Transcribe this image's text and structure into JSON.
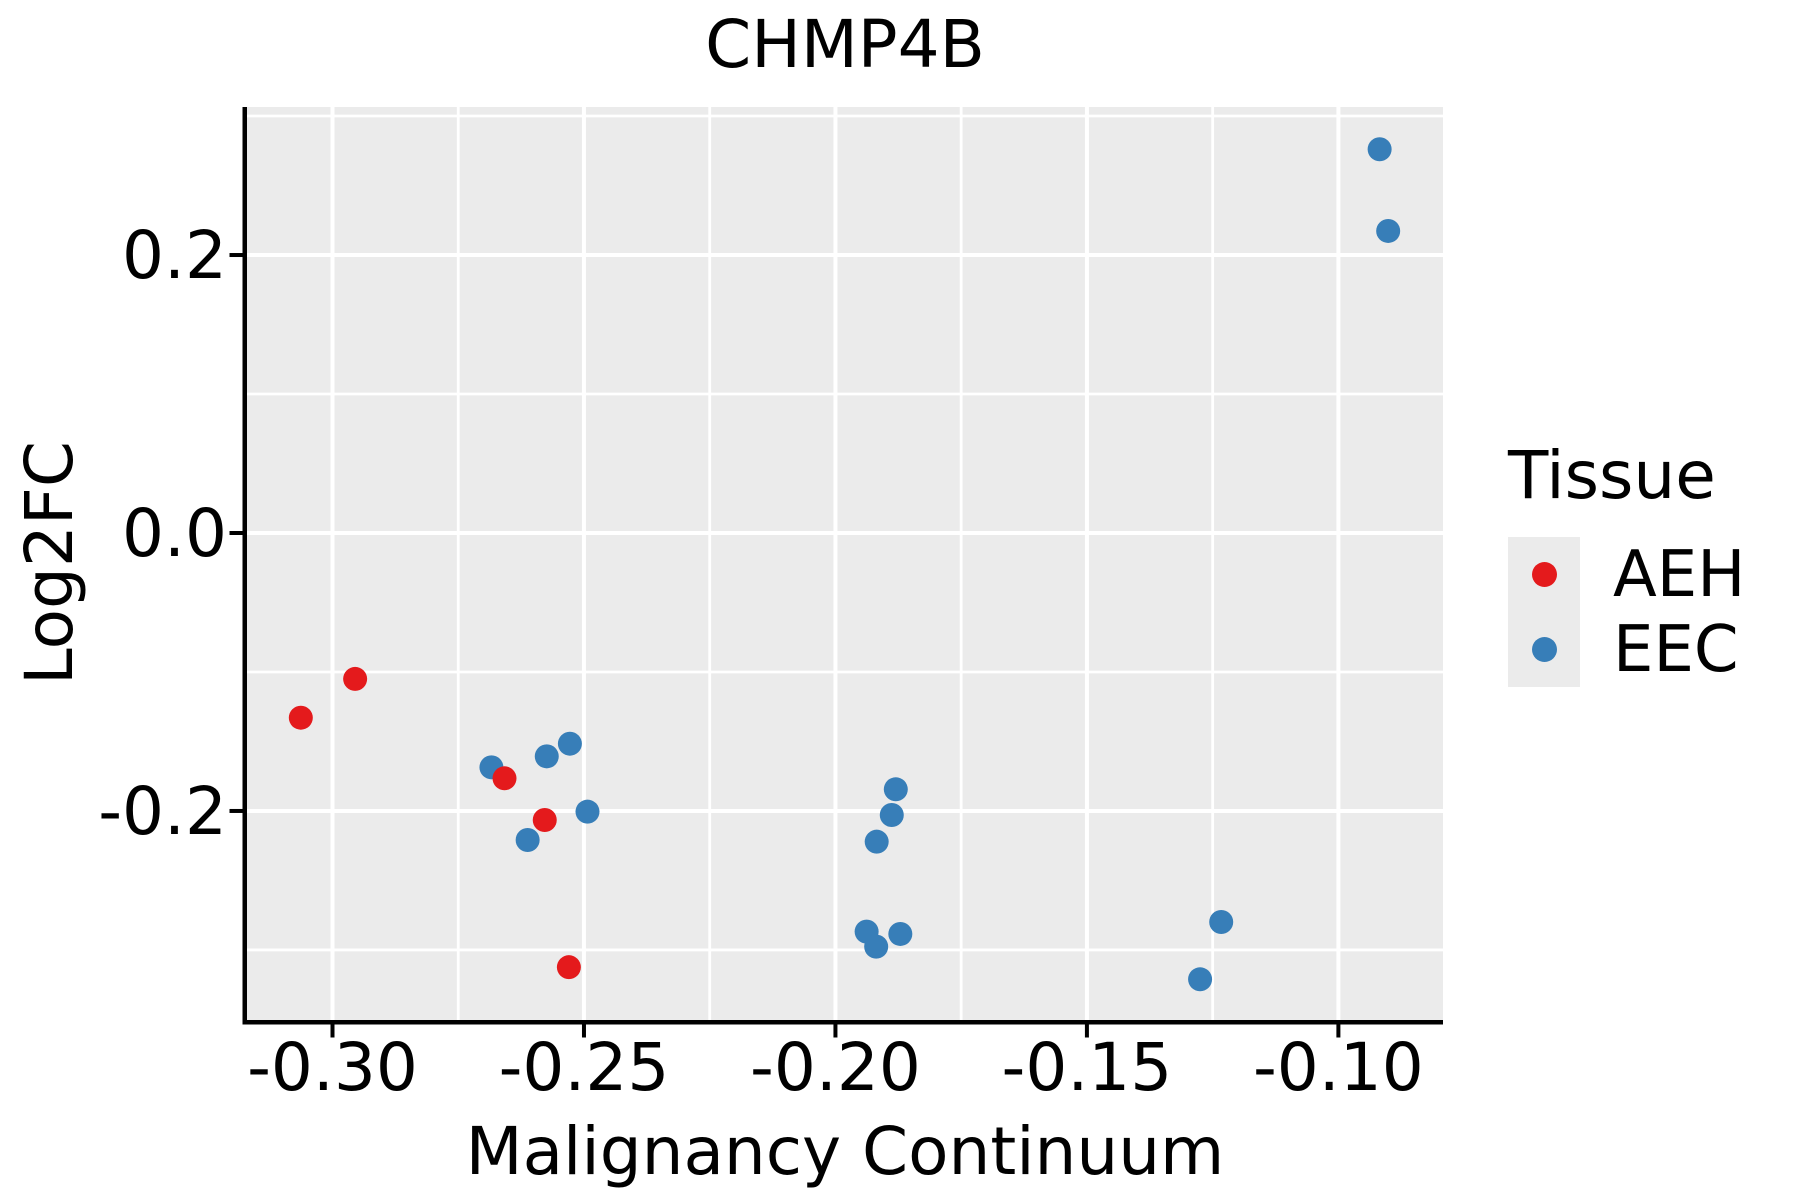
{
  "chart_data": {
    "type": "scatter",
    "title": "CHMP4B",
    "xlabel": "Malignancy Continuum",
    "ylabel": "Log2FC",
    "xlim": [
      -0.317,
      -0.0792
    ],
    "ylim": [
      -0.3504,
      0.3065
    ],
    "x_ticks": {
      "labels": [
        "-0.30",
        "-0.25",
        "-0.20",
        "-0.15",
        "-0.10"
      ],
      "values": [
        -0.3,
        -0.25,
        -0.2,
        -0.15,
        -0.1
      ],
      "minor": [
        -0.275,
        -0.225,
        -0.175,
        -0.125
      ]
    },
    "y_ticks": {
      "labels": [
        "0.2",
        "0.0",
        "-0.2"
      ],
      "values": [
        0.2,
        0.0,
        -0.2
      ],
      "minor": [
        0.3,
        0.1,
        -0.1,
        -0.3
      ]
    },
    "grid": {
      "major": true,
      "minor": true,
      "color": "#ffffff"
    },
    "panel_background": "#ebebeb",
    "axis_color": "#000000",
    "marker_radius_px": 12,
    "legend": {
      "title": "Tissue",
      "position": "right",
      "items": [
        {
          "label": "AEH",
          "color": "#e41a1c"
        },
        {
          "label": "EEC",
          "color": "#377eb8"
        }
      ]
    },
    "series": [
      {
        "name": "EEC",
        "color": "#377eb8",
        "points": [
          [
            -0.2684,
            -0.1686
          ],
          [
            -0.2574,
            -0.1607
          ],
          [
            -0.2528,
            -0.1516
          ],
          [
            -0.2493,
            -0.2005
          ],
          [
            -0.2612,
            -0.2209
          ],
          [
            -0.188,
            -0.1844
          ],
          [
            -0.1888,
            -0.2029
          ],
          [
            -0.1918,
            -0.2221
          ],
          [
            -0.1938,
            -0.2868
          ],
          [
            -0.1919,
            -0.2976
          ],
          [
            -0.1871,
            -0.2885
          ],
          [
            -0.1233,
            -0.2799
          ],
          [
            -0.1275,
            -0.3211
          ],
          [
            -0.0918,
            0.2761
          ],
          [
            -0.0901,
            0.2173
          ]
        ]
      },
      {
        "name": "AEH",
        "color": "#e41a1c",
        "points": [
          [
            -0.2955,
            -0.105
          ],
          [
            -0.3063,
            -0.1329
          ],
          [
            -0.2658,
            -0.1765
          ],
          [
            -0.2578,
            -0.2065
          ],
          [
            -0.253,
            -0.3124
          ]
        ]
      }
    ]
  }
}
